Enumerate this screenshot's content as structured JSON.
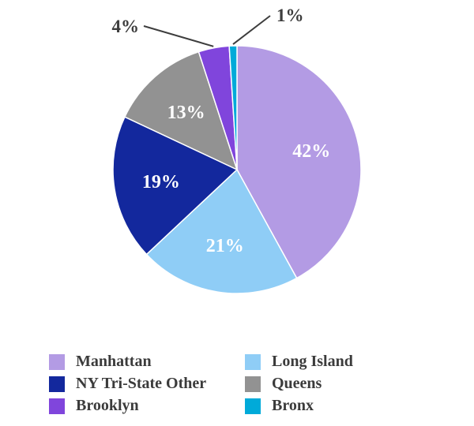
{
  "chart_data": {
    "type": "pie",
    "title": "",
    "start_angle_deg": 0,
    "direction": "clockwise",
    "slices": [
      {
        "label": "Manhattan",
        "value": 42,
        "pct_label": "42%",
        "color": "#b39be4",
        "label_placement": "inside"
      },
      {
        "label": "Long Island",
        "value": 21,
        "pct_label": "21%",
        "color": "#8fcdf6",
        "label_placement": "inside"
      },
      {
        "label": "NY Tri-State Other",
        "value": 19,
        "pct_label": "19%",
        "color": "#13289d",
        "label_placement": "inside"
      },
      {
        "label": "Queens",
        "value": 13,
        "pct_label": "13%",
        "color": "#929292",
        "label_placement": "inside"
      },
      {
        "label": "Brooklyn",
        "value": 4,
        "pct_label": "4%",
        "color": "#8045dc",
        "label_placement": "outside"
      },
      {
        "label": "Bronx",
        "value": 1,
        "pct_label": "1%",
        "color": "#00aad9",
        "label_placement": "outside"
      }
    ],
    "inside_label_color": "#ffffff",
    "outside_label_color": "#3d3d3d",
    "legend": {
      "position": "bottom",
      "columns": [
        [
          "Manhattan",
          "NY Tri-State Other",
          "Brooklyn"
        ],
        [
          "Long Island",
          "Queens",
          "Bronx"
        ]
      ]
    }
  }
}
